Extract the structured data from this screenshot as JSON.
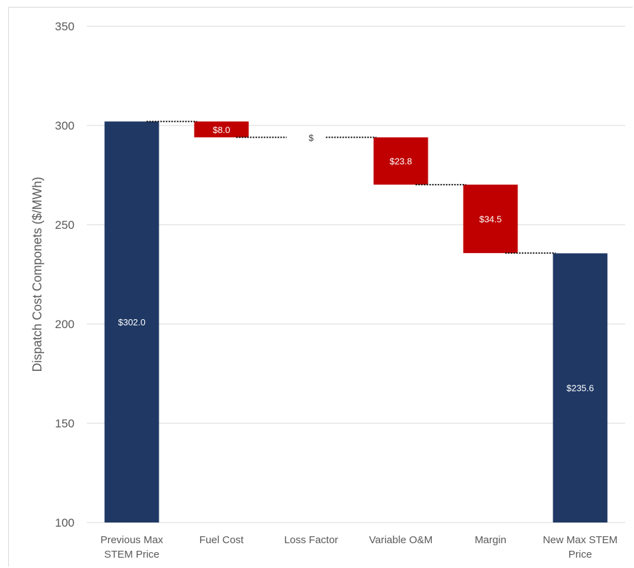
{
  "chart_data": {
    "type": "waterfall",
    "title": "",
    "xlabel": "",
    "ylabel": "Dispatch Cost Componets ($/MWh)",
    "ylim": [
      100,
      350
    ],
    "yticks": [
      100,
      150,
      200,
      250,
      300,
      350
    ],
    "grid": true,
    "categories": [
      [
        "Previous Max",
        "STEM Price"
      ],
      [
        "Fuel Cost"
      ],
      [
        "Loss Factor"
      ],
      [
        "Variable O&M"
      ],
      [
        "Margin"
      ],
      [
        "New Max STEM",
        "Price"
      ]
    ],
    "steps": [
      {
        "kind": "total",
        "value": 302.0,
        "label": "$302.0"
      },
      {
        "kind": "decrease",
        "value": 8.0,
        "label": "$8.0"
      },
      {
        "kind": "decrease",
        "value": 0.0,
        "label": "$"
      },
      {
        "kind": "decrease",
        "value": 23.8,
        "label": "$23.8"
      },
      {
        "kind": "decrease",
        "value": 34.5,
        "label": "$34.5"
      },
      {
        "kind": "total",
        "value": 235.6,
        "label": "$235.6"
      }
    ],
    "colors": {
      "total": "#1f3864",
      "decrease": "#c00000",
      "grid": "#d9d9d9",
      "connector": "#000000"
    }
  }
}
